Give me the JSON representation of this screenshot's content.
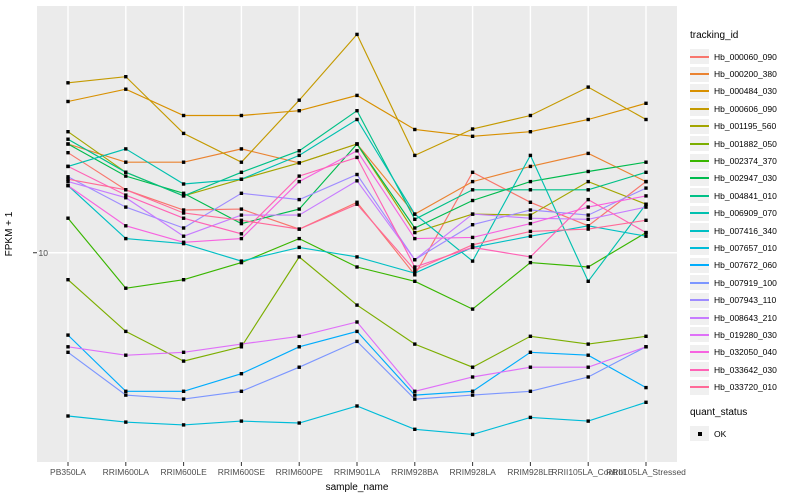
{
  "chart_data": {
    "type": "line",
    "title": "",
    "xlabel": "sample_name",
    "ylabel": "FPKM + 1",
    "y_scale": "log10",
    "y_tick_label": "10",
    "y_ticks": [
      10
    ],
    "ylim": [
      2.1,
      62
    ],
    "grid": true,
    "legend_position": "right",
    "panel_bg": "#EBEBEB",
    "grid_color": "#FFFFFF",
    "point_color": "#000000",
    "axis_text_color": "#4D4D4D",
    "categories": [
      "PB350LA",
      "RRIM600LA",
      "RRIM600LE",
      "RRIM600SE",
      "RRIM600PE",
      "RRIM901LA",
      "RRIM928BA",
      "RRIM928LA",
      "RRIM928LE",
      "RRII105LA_Control",
      "RRII105LA_Stressed"
    ],
    "legend": {
      "tracking_title": "tracking_id",
      "quant_title": "quant_status",
      "quant_label": "OK"
    },
    "series": [
      {
        "name": "Hb_000060_090",
        "color": "#F8766D",
        "values": [
          20.9,
          15.9,
          13.7,
          13.8,
          11.9,
          14.5,
          8.5,
          18.1,
          14.5,
          12.2,
          16.9
        ]
      },
      {
        "name": "Hb_000200_380",
        "color": "#EA8331",
        "values": [
          22.3,
          19.5,
          19.5,
          21.5,
          19.4,
          22.3,
          13.3,
          16.9,
          18.9,
          20.8,
          16.9
        ]
      },
      {
        "name": "Hb_000484_030",
        "color": "#D89000",
        "values": [
          30.5,
          33.4,
          27.5,
          27.5,
          28.5,
          31.9,
          24.8,
          23.6,
          24.4,
          26.7,
          30.1
        ]
      },
      {
        "name": "Hb_000606_090",
        "color": "#C49A00",
        "values": [
          35.0,
          36.6,
          24.1,
          19.5,
          30.8,
          50.0,
          20.5,
          24.9,
          27.5,
          33.9,
          26.7
        ]
      },
      {
        "name": "Hb_001195_560",
        "color": "#A3A500",
        "values": [
          24.4,
          18.1,
          15.2,
          17.2,
          19.4,
          22.3,
          11.6,
          13.3,
          13.2,
          16.9,
          14.3
        ]
      },
      {
        "name": "Hb_001882_050",
        "color": "#7CAE00",
        "values": [
          8.2,
          5.6,
          4.5,
          5.0,
          9.7,
          6.8,
          5.1,
          4.3,
          5.4,
          5.1,
          5.4
        ]
      },
      {
        "name": "Hb_002374_370",
        "color": "#39B600",
        "values": [
          12.9,
          7.7,
          8.2,
          9.3,
          11.1,
          9.0,
          8.1,
          6.6,
          9.3,
          9.0,
          11.6
        ]
      },
      {
        "name": "Hb_002947_030",
        "color": "#00BB4E",
        "values": [
          22.3,
          17.6,
          15.5,
          12.4,
          13.8,
          22.3,
          12.0,
          14.7,
          16.9,
          18.2,
          19.5
        ]
      },
      {
        "name": "Hb_004841_010",
        "color": "#00C087",
        "values": [
          23.1,
          18.1,
          15.2,
          18.1,
          21.2,
          28.5,
          12.8,
          15.9,
          15.9,
          15.9,
          18.1
        ]
      },
      {
        "name": "Hb_006909_070",
        "color": "#00C0AF",
        "values": [
          18.9,
          21.5,
          16.6,
          17.2,
          20.5,
          26.7,
          13.3,
          9.4,
          20.5,
          8.1,
          14.3
        ]
      },
      {
        "name": "Hb_007416_340",
        "color": "#00BFC4",
        "values": [
          16.4,
          11.1,
          10.7,
          9.4,
          10.4,
          9.7,
          8.6,
          10.4,
          11.3,
          12.2,
          11.3
        ]
      },
      {
        "name": "Hb_007657_010",
        "color": "#00BCD8",
        "values": [
          3.0,
          2.87,
          2.81,
          2.89,
          2.85,
          3.23,
          2.72,
          2.62,
          2.97,
          2.89,
          3.32
        ]
      },
      {
        "name": "Hb_007672_060",
        "color": "#00ACFC",
        "values": [
          5.45,
          3.6,
          3.6,
          4.1,
          5.0,
          5.6,
          3.5,
          3.6,
          4.8,
          4.7,
          3.7
        ]
      },
      {
        "name": "Hb_007919_100",
        "color": "#7C96FF",
        "values": [
          4.8,
          3.5,
          3.4,
          3.6,
          4.3,
          5.2,
          3.4,
          3.5,
          3.6,
          4.0,
          5.0
        ]
      },
      {
        "name": "Hb_007943_110",
        "color": "#9F8CFF",
        "values": [
          17.5,
          14.0,
          12.0,
          15.5,
          14.8,
          17.8,
          9.5,
          12.3,
          13.7,
          13.2,
          16.1
        ]
      },
      {
        "name": "Hb_008643_210",
        "color": "#C77CFF",
        "values": [
          16.9,
          15.0,
          11.3,
          13.2,
          13.2,
          17.0,
          9.5,
          13.3,
          12.9,
          12.8,
          14.0
        ]
      },
      {
        "name": "Hb_019280_030",
        "color": "#DF70F8",
        "values": [
          5.0,
          4.7,
          4.8,
          5.1,
          5.4,
          6.0,
          3.6,
          4.0,
          4.3,
          4.3,
          5.0
        ]
      },
      {
        "name": "Hb_032050_040",
        "color": "#F763E0",
        "values": [
          16.4,
          12.2,
          10.8,
          11.1,
          16.9,
          21.2,
          11.1,
          11.2,
          12.4,
          14.0,
          15.2
        ]
      },
      {
        "name": "Hb_033642_030",
        "color": "#FF63B6",
        "values": [
          18.9,
          15.3,
          12.9,
          11.5,
          17.6,
          20.2,
          9.0,
          10.4,
          9.7,
          14.8,
          11.6
        ]
      },
      {
        "name": "Hb_033720_010",
        "color": "#FF6A98",
        "values": [
          17.2,
          15.9,
          13.4,
          12.7,
          11.9,
          14.3,
          8.8,
          10.6,
          11.7,
          11.9,
          12.7
        ]
      }
    ]
  }
}
